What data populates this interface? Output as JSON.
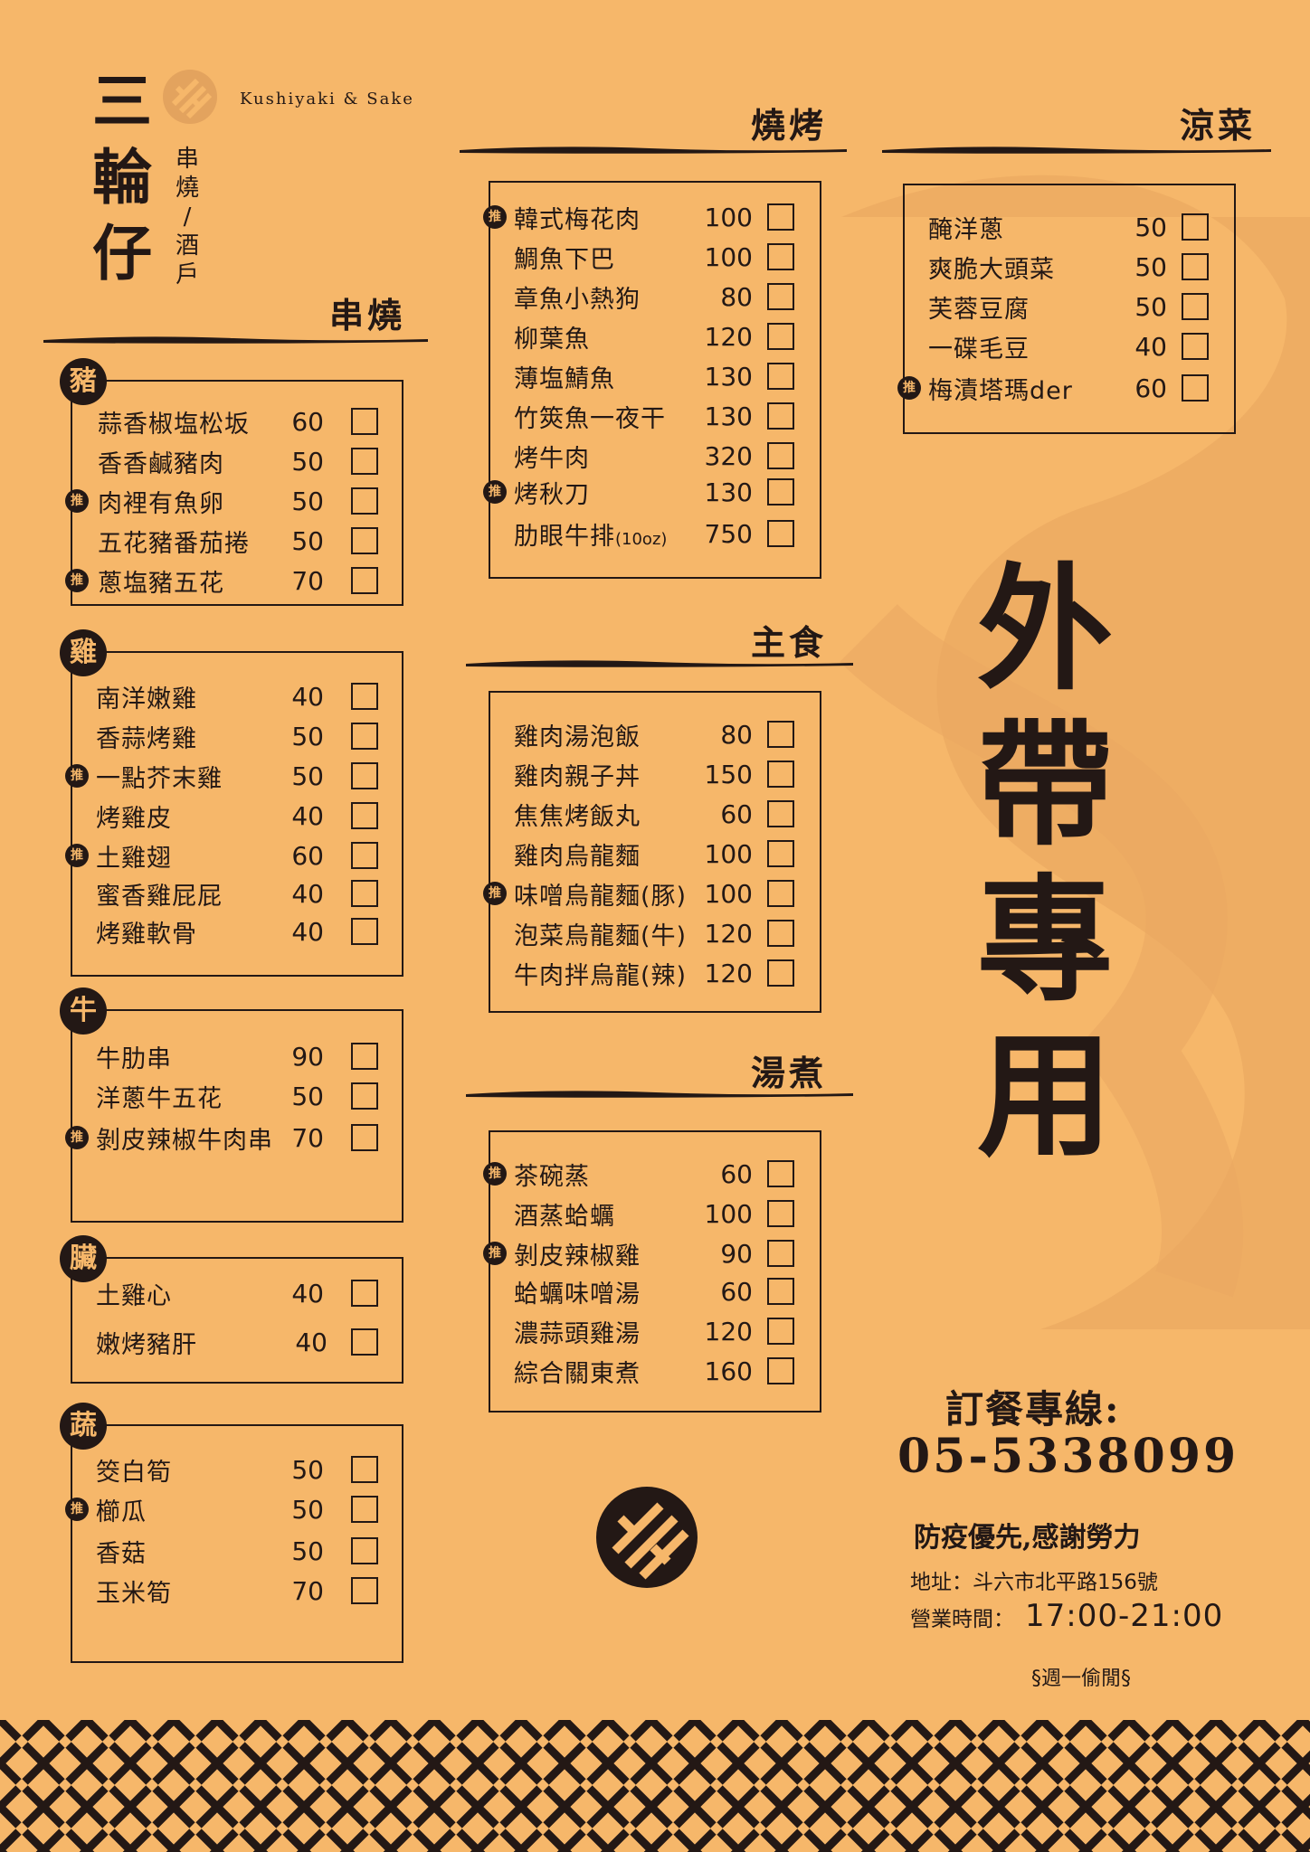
{
  "brand": {
    "name_chars": [
      "三",
      "輪",
      "仔"
    ],
    "subtitle_chars": [
      "串",
      "燒",
      "/",
      "酒",
      "戶"
    ],
    "english": "Kushiyaki & Sake"
  },
  "sections": {
    "kushiyaki": {
      "title": "串燒",
      "categories": [
        {
          "badge": "豬",
          "items": [
            {
              "name": "蒜香椒塩松坂",
              "price": "60"
            },
            {
              "name": "香香鹹豬肉",
              "price": "50"
            },
            {
              "name": "肉裡有魚卵",
              "price": "50",
              "rec": "推"
            },
            {
              "name": "五花豬番茄捲",
              "price": "50"
            },
            {
              "name": "蔥塩豬五花",
              "price": "70",
              "rec": "推"
            }
          ]
        },
        {
          "badge": "雞",
          "items": [
            {
              "name": "南洋嫩雞",
              "price": "40"
            },
            {
              "name": "香蒜烤雞",
              "price": "50"
            },
            {
              "name": "一點芥末雞",
              "price": "50",
              "rec": "推"
            },
            {
              "name": "烤雞皮",
              "price": "40"
            },
            {
              "name": "土雞翅",
              "price": "60",
              "rec": "推"
            },
            {
              "name": "蜜香雞屁屁",
              "price": "40"
            },
            {
              "name": "烤雞軟骨",
              "price": "40"
            }
          ]
        },
        {
          "badge": "牛",
          "items": [
            {
              "name": "牛肋串",
              "price": "90"
            },
            {
              "name": "洋蔥牛五花",
              "price": "50"
            },
            {
              "name": "剝皮辣椒牛肉串",
              "price": "70",
              "rec": "推"
            }
          ]
        },
        {
          "badge": "臟",
          "items": [
            {
              "name": "土雞心",
              "price": "40"
            },
            {
              "name": "嫩烤豬肝",
              "price": "40"
            }
          ]
        },
        {
          "badge": "蔬",
          "items": [
            {
              "name": "筊白筍",
              "price": "50"
            },
            {
              "name": "櫛瓜",
              "price": "50",
              "rec": "推"
            },
            {
              "name": "香菇",
              "price": "50"
            },
            {
              "name": "玉米筍",
              "price": "70"
            }
          ]
        }
      ]
    },
    "grill": {
      "title": "燒烤",
      "items": [
        {
          "name": "韓式梅花肉",
          "price": "100",
          "rec": "推"
        },
        {
          "name": "鯛魚下巴",
          "price": "100"
        },
        {
          "name": "章魚小熱狗",
          "price": "80"
        },
        {
          "name": "柳葉魚",
          "price": "120"
        },
        {
          "name": "薄塩鯖魚",
          "price": "130"
        },
        {
          "name": "竹筴魚一夜干",
          "price": "130"
        },
        {
          "name": "烤牛肉",
          "price": "320"
        },
        {
          "name": "烤秋刀",
          "price": "130",
          "rec": "推"
        },
        {
          "name": "肋眼牛排",
          "note": "(10oz)",
          "price": "750"
        }
      ]
    },
    "main": {
      "title": "主食",
      "items": [
        {
          "name": "雞肉湯泡飯",
          "price": "80"
        },
        {
          "name": "雞肉親子丼",
          "price": "150"
        },
        {
          "name": "焦焦烤飯丸",
          "price": "60"
        },
        {
          "name": "雞肉烏龍麵",
          "price": "100"
        },
        {
          "name": "味噌烏龍麵(豚)",
          "price": "100",
          "rec": "推"
        },
        {
          "name": "泡菜烏龍麵(牛)",
          "price": "120"
        },
        {
          "name": "牛肉拌烏龍(辣)",
          "price": "120"
        }
      ]
    },
    "soup": {
      "title": "湯煮",
      "items": [
        {
          "name": "茶碗蒸",
          "price": "60",
          "rec": "推"
        },
        {
          "name": "酒蒸蛤蠣",
          "price": "100"
        },
        {
          "name": "剝皮辣椒雞",
          "price": "90",
          "rec": "推"
        },
        {
          "name": "蛤蠣味噌湯",
          "price": "60"
        },
        {
          "name": "濃蒜頭雞湯",
          "price": "120"
        },
        {
          "name": "綜合關東煮",
          "price": "160"
        }
      ]
    },
    "cold": {
      "title": "涼菜",
      "items": [
        {
          "name": "醃洋蔥",
          "price": "50"
        },
        {
          "name": "爽脆大頭菜",
          "price": "50"
        },
        {
          "name": "芙蓉豆腐",
          "price": "50"
        },
        {
          "name": "一碟毛豆",
          "price": "40"
        },
        {
          "name": "梅漬塔瑪der",
          "price": "60",
          "rec": "推"
        }
      ]
    }
  },
  "takeout_chars": [
    "外",
    "帶",
    "專",
    "用"
  ],
  "contact": {
    "order_label": "訂餐專線:",
    "phone": "05-5338099",
    "slogan": "防疫優先,感謝勞力",
    "address": "地址：斗六市北平路156號",
    "hours_label": "營業時間：",
    "hours": "17:00-21:00",
    "closed": "§週一偷閒§"
  },
  "colors": {
    "background": "#f6b76a",
    "ink": "#231815",
    "swoosh": "#e8a866"
  },
  "icons": [
    "brand-mark-icon",
    "recommend-badge-icon",
    "checkbox-icon"
  ]
}
